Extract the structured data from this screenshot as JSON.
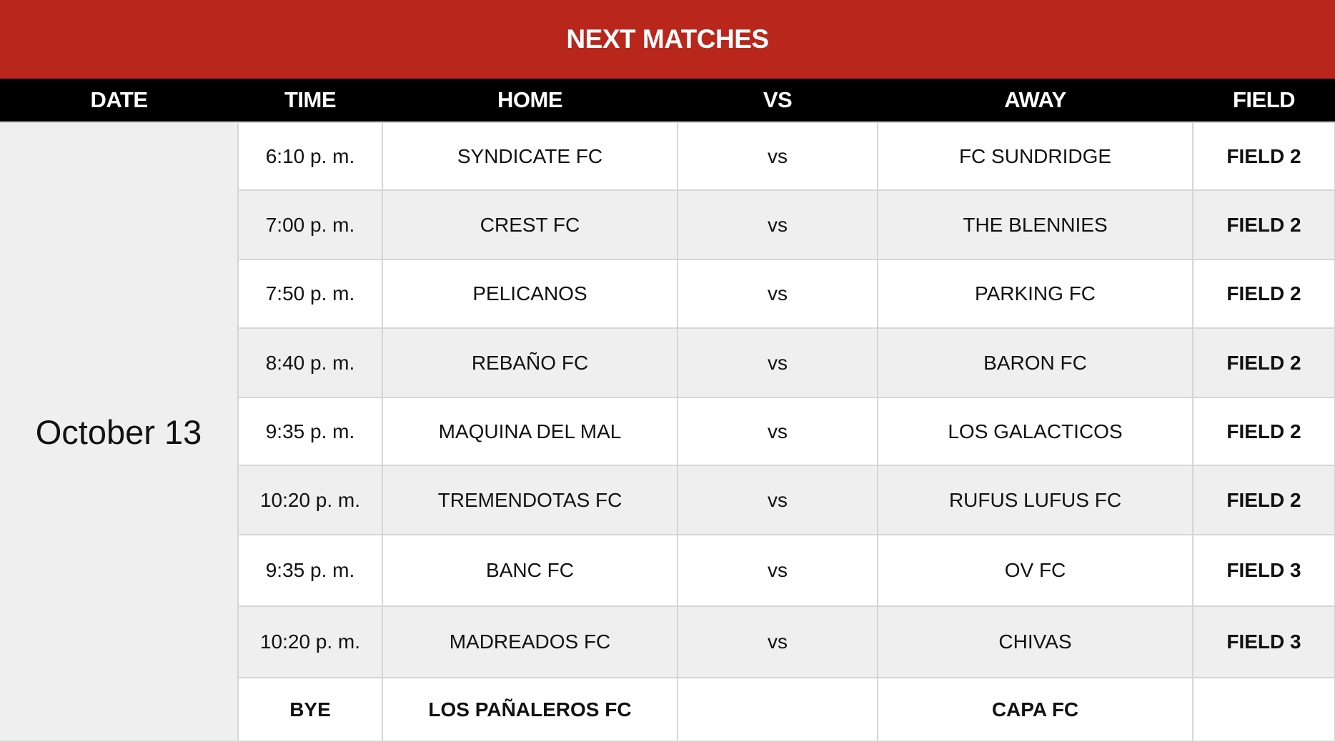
{
  "title": "NEXT MATCHES",
  "columns": [
    "DATE",
    "TIME",
    "HOME",
    "VS",
    "AWAY",
    "FIELD"
  ],
  "date": "October 13",
  "colors": {
    "header_red": "#b8261c",
    "header_black": "#000000",
    "row_alt": "#efefef"
  },
  "rows": [
    {
      "time": "6:10 p. m.",
      "home": "SYNDICATE FC",
      "vs": "vs",
      "away": "FC SUNDRIDGE",
      "field": "FIELD 2"
    },
    {
      "time": "7:00 p. m.",
      "home": "CREST FC",
      "vs": "vs",
      "away": "THE BLENNIES",
      "field": "FIELD 2"
    },
    {
      "time": "7:50 p. m.",
      "home": "PELICANOS",
      "vs": "vs",
      "away": "PARKING FC",
      "field": "FIELD 2"
    },
    {
      "time": "8:40 p. m.",
      "home": "REBAÑO FC",
      "vs": "vs",
      "away": "BARON FC",
      "field": "FIELD 2"
    },
    {
      "time": "9:35 p. m.",
      "home": "MAQUINA DEL MAL",
      "vs": "vs",
      "away": "LOS GALACTICOS",
      "field": "FIELD 2"
    },
    {
      "time": "10:20 p. m.",
      "home": "TREMENDOTAS FC",
      "vs": "vs",
      "away": "RUFUS LUFUS FC",
      "field": "FIELD 2"
    },
    {
      "time": "9:35 p. m.",
      "home": "BANC FC",
      "vs": "vs",
      "away": "OV FC",
      "field": "FIELD 3"
    },
    {
      "time": "10:20 p. m.",
      "home": "MADREADOS FC",
      "vs": "vs",
      "away": "CHIVAS",
      "field": "FIELD 3"
    }
  ],
  "bye": {
    "label": "BYE",
    "team1": "LOS PAÑALEROS FC",
    "team2": "CAPA FC"
  }
}
